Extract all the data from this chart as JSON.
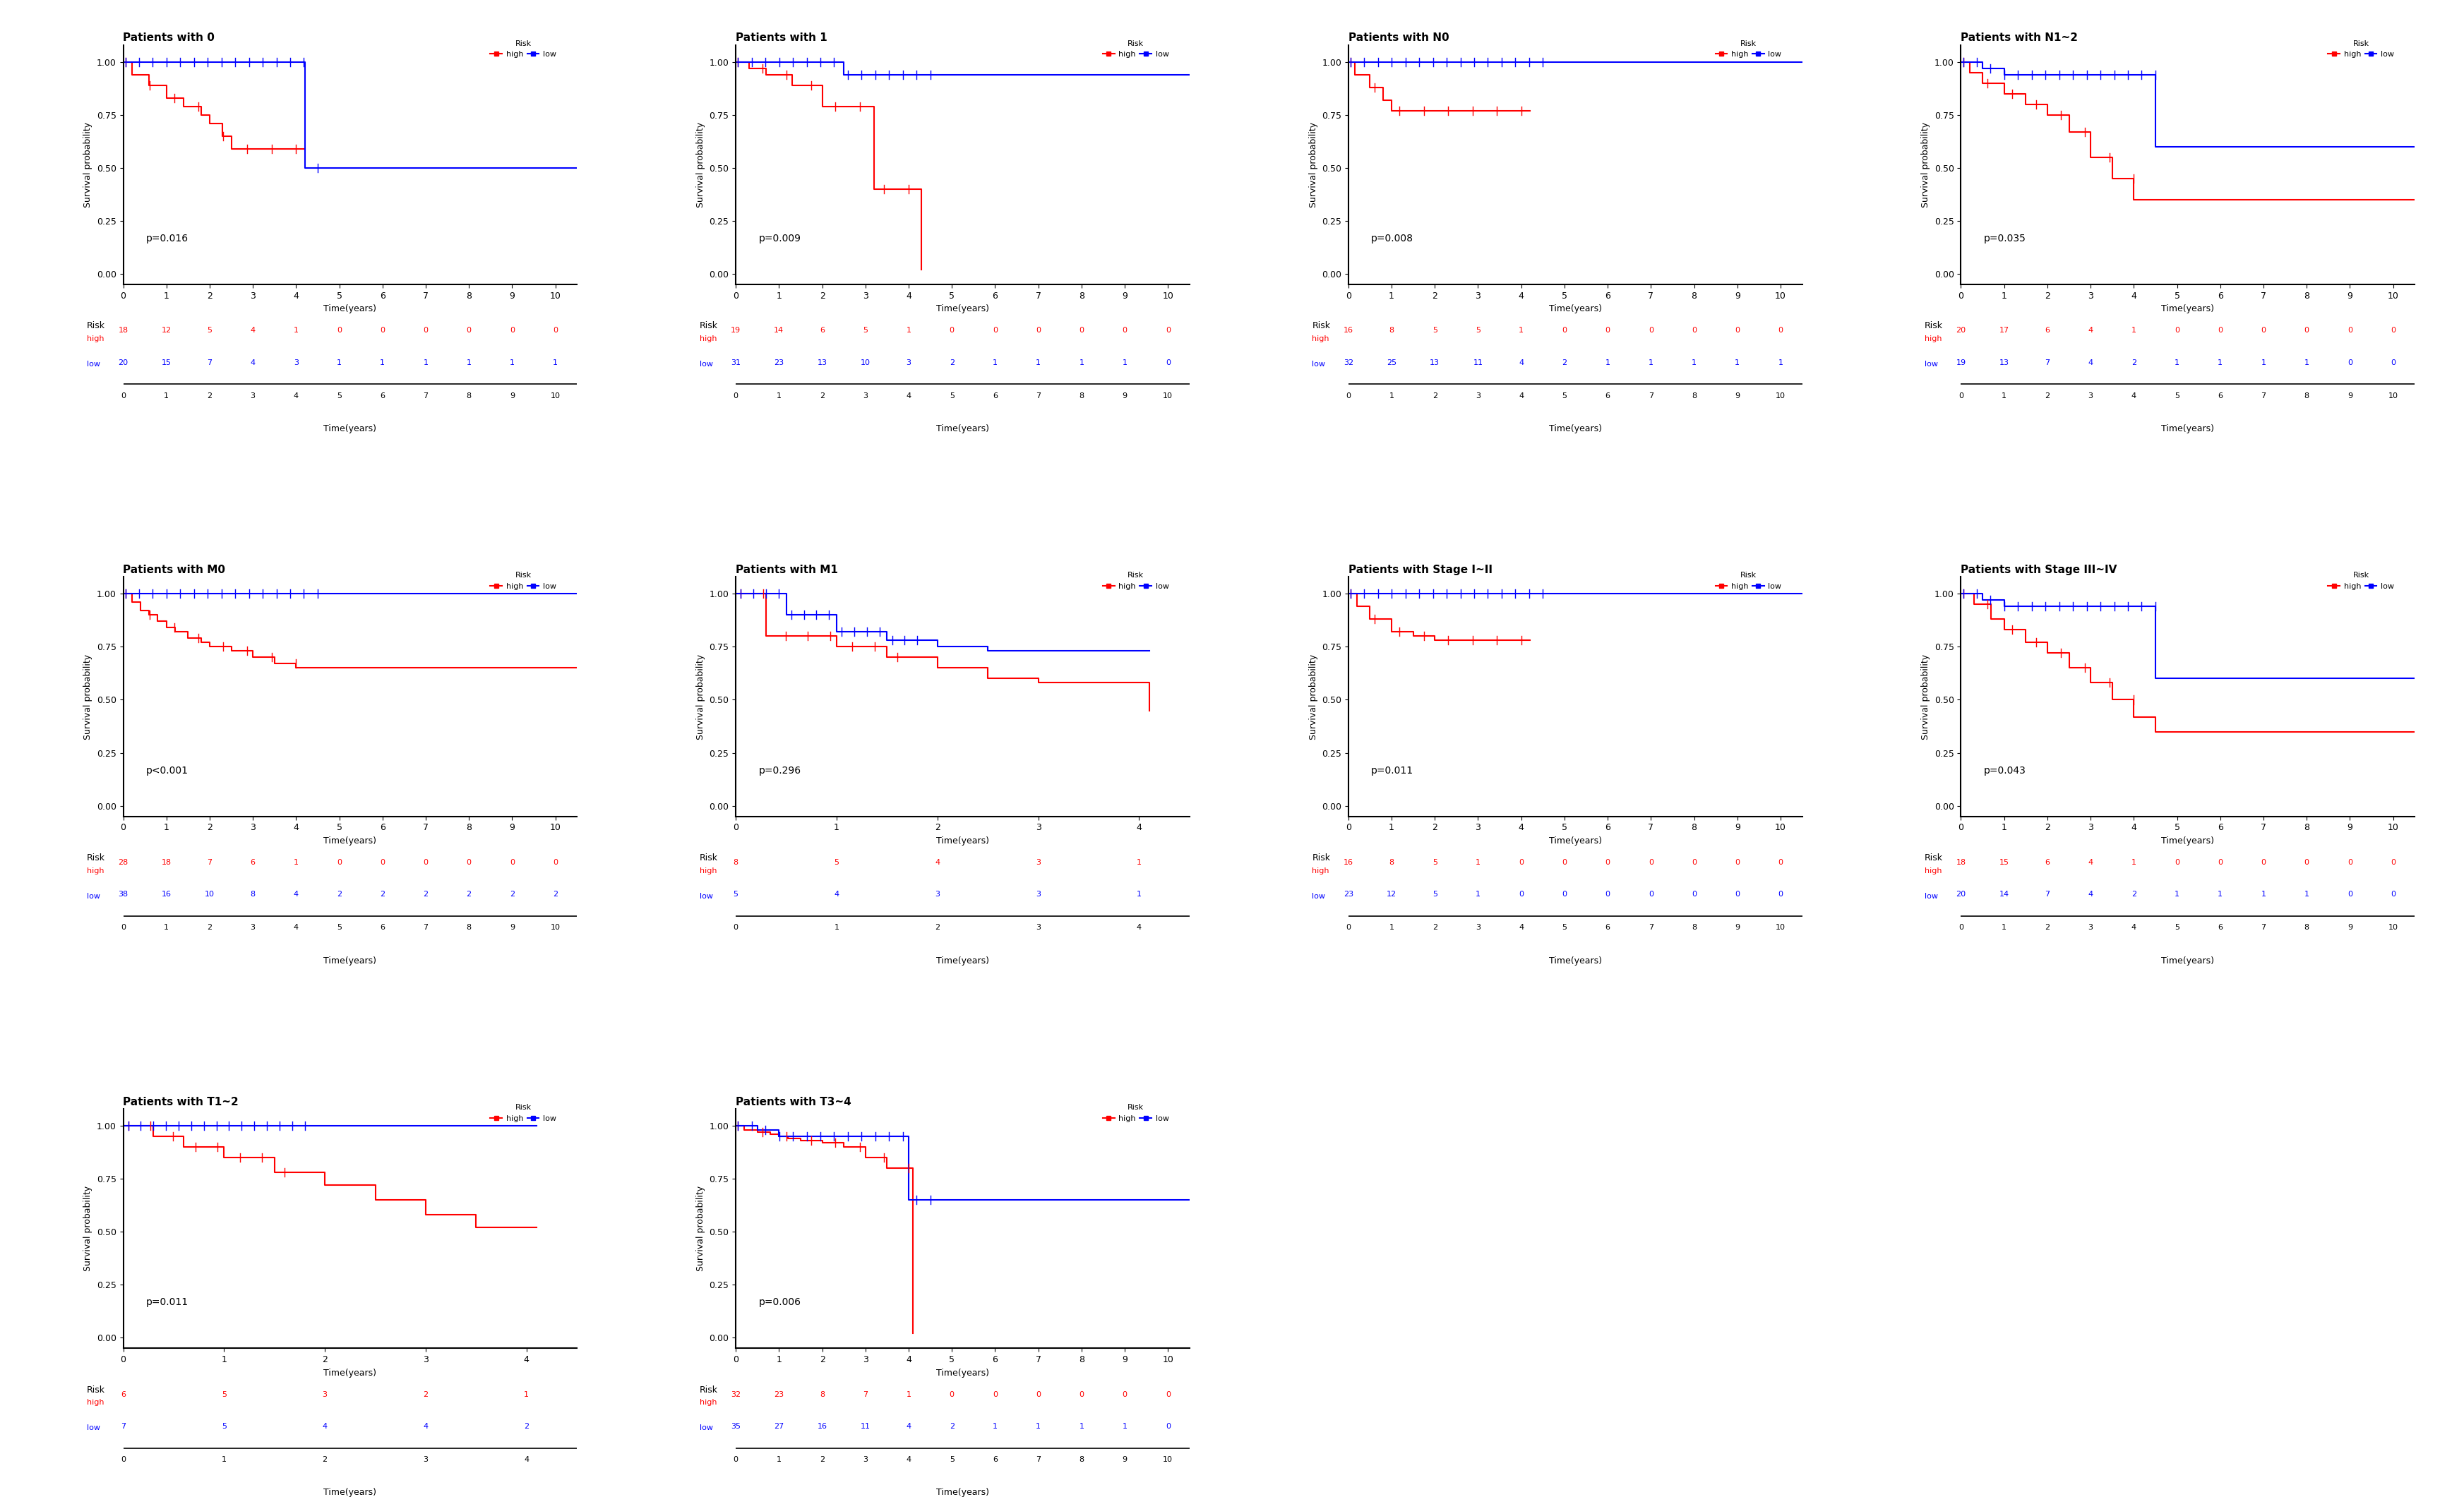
{
  "panels": [
    {
      "title": "Patients with 0",
      "pval": "p=0.016",
      "xmax": 10,
      "high_times": [
        0,
        0.2,
        0.4,
        0.6,
        0.8,
        1.0,
        1.2,
        1.4,
        1.6,
        1.8,
        2.0,
        2.3,
        2.5,
        2.7,
        2.9,
        3.1,
        4.2
      ],
      "high_surv": [
        1.0,
        0.94,
        0.94,
        0.89,
        0.89,
        0.83,
        0.83,
        0.79,
        0.79,
        0.75,
        0.71,
        0.65,
        0.59,
        0.59,
        0.59,
        0.59,
        0.59
      ],
      "low_times": [
        0,
        4.2,
        4.2,
        10.5
      ],
      "low_surv": [
        1.0,
        1.0,
        0.5,
        0.5
      ],
      "high_at_risk": [
        18,
        12,
        5,
        4,
        1,
        0,
        0,
        0,
        0,
        0,
        0
      ],
      "low_at_risk": [
        20,
        15,
        7,
        4,
        3,
        1,
        1,
        1,
        1,
        1,
        1
      ],
      "risk_xticks": [
        0,
        1,
        2,
        3,
        4,
        5,
        6,
        7,
        8,
        9,
        10
      ],
      "ylim": [
        0,
        1.05
      ],
      "yticks": [
        0.0,
        0.25,
        0.5,
        0.75,
        1.0
      ]
    },
    {
      "title": "Patients with 1",
      "pval": "p=0.009",
      "xmax": 10,
      "high_times": [
        0,
        0.3,
        0.7,
        1.0,
        1.3,
        1.6,
        2.0,
        2.2,
        2.5,
        3.0,
        3.2,
        3.5,
        4.0,
        4.3,
        4.3
      ],
      "high_surv": [
        1.0,
        0.97,
        0.94,
        0.94,
        0.89,
        0.89,
        0.79,
        0.79,
        0.79,
        0.79,
        0.4,
        0.4,
        0.4,
        0.02,
        0.02
      ],
      "low_times": [
        0,
        2.5,
        2.5,
        3.0,
        10.5
      ],
      "low_surv": [
        1.0,
        1.0,
        0.94,
        0.94,
        0.94
      ],
      "high_at_risk": [
        19,
        14,
        6,
        5,
        1,
        0,
        0,
        0,
        0,
        0,
        0
      ],
      "low_at_risk": [
        31,
        23,
        13,
        10,
        3,
        2,
        1,
        1,
        1,
        1,
        0
      ],
      "risk_xticks": [
        0,
        1,
        2,
        3,
        4,
        5,
        6,
        7,
        8,
        9,
        10
      ],
      "ylim": [
        0,
        1.05
      ],
      "yticks": [
        0.0,
        0.25,
        0.5,
        0.75,
        1.0
      ]
    },
    {
      "title": "Patients with N0",
      "pval": "p=0.008",
      "xmax": 10,
      "high_times": [
        0,
        0.15,
        0.3,
        0.5,
        0.8,
        1.0,
        1.5,
        2.0,
        2.5,
        3.0,
        3.5,
        4.0,
        4.2
      ],
      "high_surv": [
        1.0,
        0.94,
        0.94,
        0.88,
        0.82,
        0.77,
        0.77,
        0.77,
        0.77,
        0.77,
        0.77,
        0.77,
        0.77
      ],
      "low_times": [
        0,
        10.5
      ],
      "low_surv": [
        1.0,
        1.0
      ],
      "high_at_risk": [
        16,
        8,
        5,
        5,
        1,
        0,
        0,
        0,
        0,
        0,
        0
      ],
      "low_at_risk": [
        32,
        25,
        13,
        11,
        4,
        2,
        1,
        1,
        1,
        1,
        1
      ],
      "risk_xticks": [
        0,
        1,
        2,
        3,
        4,
        5,
        6,
        7,
        8,
        9,
        10
      ],
      "ylim": [
        0,
        1.05
      ],
      "yticks": [
        0.0,
        0.25,
        0.5,
        0.75,
        1.0
      ]
    },
    {
      "title": "Patients with N1~2",
      "pval": "p=0.035",
      "xmax": 10,
      "high_times": [
        0,
        0.2,
        0.5,
        1.0,
        1.5,
        2.0,
        2.5,
        3.0,
        3.5,
        4.0,
        4.5,
        5.0,
        10.5
      ],
      "high_surv": [
        1.0,
        0.95,
        0.9,
        0.85,
        0.8,
        0.75,
        0.67,
        0.55,
        0.45,
        0.35,
        0.35,
        0.35,
        0.35
      ],
      "low_times": [
        0,
        0.5,
        1.0,
        4.5,
        4.5,
        10.5
      ],
      "low_surv": [
        1.0,
        0.97,
        0.94,
        0.94,
        0.6,
        0.6
      ],
      "high_at_risk": [
        20,
        17,
        6,
        4,
        1,
        0,
        0,
        0,
        0,
        0,
        0
      ],
      "low_at_risk": [
        19,
        13,
        7,
        4,
        2,
        1,
        1,
        1,
        1,
        0,
        0
      ],
      "risk_xticks": [
        0,
        1,
        2,
        3,
        4,
        5,
        6,
        7,
        8,
        9,
        10
      ],
      "ylim": [
        0,
        1.05
      ],
      "yticks": [
        0.0,
        0.25,
        0.5,
        0.75,
        1.0
      ]
    },
    {
      "title": "Patients with M0",
      "pval": "p<0.001",
      "xmax": 10,
      "high_times": [
        0,
        0.2,
        0.4,
        0.6,
        0.8,
        1.0,
        1.2,
        1.5,
        1.8,
        2.0,
        2.5,
        3.0,
        3.5,
        4.0,
        10.5
      ],
      "high_surv": [
        1.0,
        0.96,
        0.92,
        0.9,
        0.87,
        0.84,
        0.82,
        0.79,
        0.77,
        0.75,
        0.73,
        0.7,
        0.67,
        0.65,
        0.65
      ],
      "low_times": [
        0,
        10.5
      ],
      "low_surv": [
        1.0,
        1.0
      ],
      "high_at_risk": [
        28,
        18,
        7,
        6,
        1,
        0,
        0,
        0,
        0,
        0,
        0
      ],
      "low_at_risk": [
        38,
        16,
        10,
        8,
        4,
        2,
        2,
        2,
        2,
        2,
        2
      ],
      "risk_xticks": [
        0,
        1,
        2,
        3,
        4,
        5,
        6,
        7,
        8,
        9,
        10
      ],
      "ylim": [
        0,
        1.05
      ],
      "yticks": [
        0.0,
        0.25,
        0.5,
        0.75,
        1.0
      ]
    },
    {
      "title": "Patients with M1",
      "pval": "p=0.296",
      "xmax": 4,
      "high_times": [
        0,
        0.3,
        0.6,
        1.0,
        1.5,
        2.0,
        2.5,
        3.0,
        3.5,
        4.1
      ],
      "high_surv": [
        1.0,
        0.8,
        0.8,
        0.75,
        0.7,
        0.65,
        0.6,
        0.58,
        0.58,
        0.45
      ],
      "low_times": [
        0,
        0.5,
        1.0,
        1.5,
        2.0,
        2.5,
        3.0,
        3.5,
        4.1
      ],
      "low_surv": [
        1.0,
        0.9,
        0.82,
        0.78,
        0.75,
        0.73,
        0.73,
        0.73,
        0.73
      ],
      "high_at_risk": [
        8,
        5,
        4,
        3,
        1
      ],
      "low_at_risk": [
        5,
        4,
        3,
        3,
        1
      ],
      "risk_xticks": [
        0,
        1,
        2,
        3,
        4
      ],
      "ylim": [
        0,
        1.05
      ],
      "yticks": [
        0.0,
        0.25,
        0.5,
        0.75,
        1.0
      ]
    },
    {
      "title": "Patients with Stage I~II",
      "pval": "p=0.011",
      "xmax": 10,
      "high_times": [
        0,
        0.2,
        0.5,
        1.0,
        1.5,
        2.0,
        2.5,
        3.0,
        3.5,
        4.0,
        4.2
      ],
      "high_surv": [
        1.0,
        0.94,
        0.88,
        0.82,
        0.8,
        0.78,
        0.78,
        0.78,
        0.78,
        0.78,
        0.78
      ],
      "low_times": [
        0,
        10.5
      ],
      "low_surv": [
        1.0,
        1.0
      ],
      "high_at_risk": [
        16,
        8,
        5,
        1,
        0,
        0,
        0,
        0,
        0,
        0,
        0
      ],
      "low_at_risk": [
        23,
        12,
        5,
        1,
        0,
        0,
        0,
        0,
        0,
        0,
        0
      ],
      "risk_xticks": [
        0,
        1,
        2,
        3,
        4,
        5,
        6,
        7,
        8,
        9,
        10
      ],
      "ylim": [
        0,
        1.05
      ],
      "yticks": [
        0.0,
        0.25,
        0.5,
        0.75,
        1.0
      ]
    },
    {
      "title": "Patients with Stage III~IV",
      "pval": "p=0.043",
      "xmax": 10,
      "high_times": [
        0,
        0.3,
        0.7,
        1.0,
        1.5,
        2.0,
        2.5,
        3.0,
        3.5,
        4.0,
        4.5,
        5.0,
        10.5
      ],
      "high_surv": [
        1.0,
        0.95,
        0.88,
        0.83,
        0.77,
        0.72,
        0.65,
        0.58,
        0.5,
        0.42,
        0.35,
        0.35,
        0.35
      ],
      "low_times": [
        0,
        0.5,
        1.0,
        4.5,
        4.5,
        10.5
      ],
      "low_surv": [
        1.0,
        0.97,
        0.94,
        0.94,
        0.6,
        0.6
      ],
      "high_at_risk": [
        18,
        15,
        6,
        4,
        1,
        0,
        0,
        0,
        0,
        0,
        0
      ],
      "low_at_risk": [
        20,
        14,
        7,
        4,
        2,
        1,
        1,
        1,
        1,
        0,
        0
      ],
      "risk_xticks": [
        0,
        1,
        2,
        3,
        4,
        5,
        6,
        7,
        8,
        9,
        10
      ],
      "ylim": [
        0,
        1.05
      ],
      "yticks": [
        0.0,
        0.25,
        0.5,
        0.75,
        1.0
      ]
    },
    {
      "title": "Patients with T1~2",
      "pval": "p=0.011",
      "xmax": 4,
      "high_times": [
        0,
        0.3,
        0.6,
        1.0,
        1.5,
        2.0,
        2.5,
        3.0,
        3.5,
        4.1
      ],
      "high_surv": [
        1.0,
        0.95,
        0.9,
        0.85,
        0.78,
        0.72,
        0.65,
        0.58,
        0.52,
        0.52
      ],
      "low_times": [
        0,
        4.1
      ],
      "low_surv": [
        1.0,
        1.0
      ],
      "high_at_risk": [
        6,
        5,
        3,
        2,
        1
      ],
      "low_at_risk": [
        7,
        5,
        4,
        4,
        2
      ],
      "risk_xticks": [
        0,
        1,
        2,
        3,
        4
      ],
      "ylim": [
        0,
        1.05
      ],
      "yticks": [
        0.0,
        0.25,
        0.5,
        0.75,
        1.0
      ]
    },
    {
      "title": "Patients with T3~4",
      "pval": "p=0.006",
      "xmax": 10,
      "high_times": [
        0,
        0.2,
        0.5,
        0.8,
        1.0,
        1.2,
        1.5,
        2.0,
        2.5,
        3.0,
        3.5,
        4.0,
        4.1,
        4.1
      ],
      "high_surv": [
        1.0,
        0.98,
        0.97,
        0.96,
        0.95,
        0.94,
        0.93,
        0.92,
        0.9,
        0.85,
        0.8,
        0.8,
        0.02,
        0.02
      ],
      "low_times": [
        0,
        0.5,
        1.0,
        4.0,
        4.0,
        10.5
      ],
      "low_surv": [
        1.0,
        0.98,
        0.95,
        0.95,
        0.65,
        0.65
      ],
      "high_at_risk": [
        32,
        23,
        8,
        7,
        1,
        0,
        0,
        0,
        0,
        0,
        0
      ],
      "low_at_risk": [
        35,
        27,
        16,
        11,
        4,
        2,
        1,
        1,
        1,
        1,
        0
      ],
      "risk_xticks": [
        0,
        1,
        2,
        3,
        4,
        5,
        6,
        7,
        8,
        9,
        10
      ],
      "ylim": [
        0,
        1.05
      ],
      "yticks": [
        0.0,
        0.25,
        0.5,
        0.75,
        1.0
      ]
    }
  ],
  "high_color": "#FF0000",
  "low_color": "#0000FF",
  "ylabel": "Survival probability",
  "xlabel": "Time(years)",
  "risk_label": "Risk",
  "font_size": 9,
  "title_font_size": 11,
  "pval_font_size": 10,
  "legend_font_size": 9
}
